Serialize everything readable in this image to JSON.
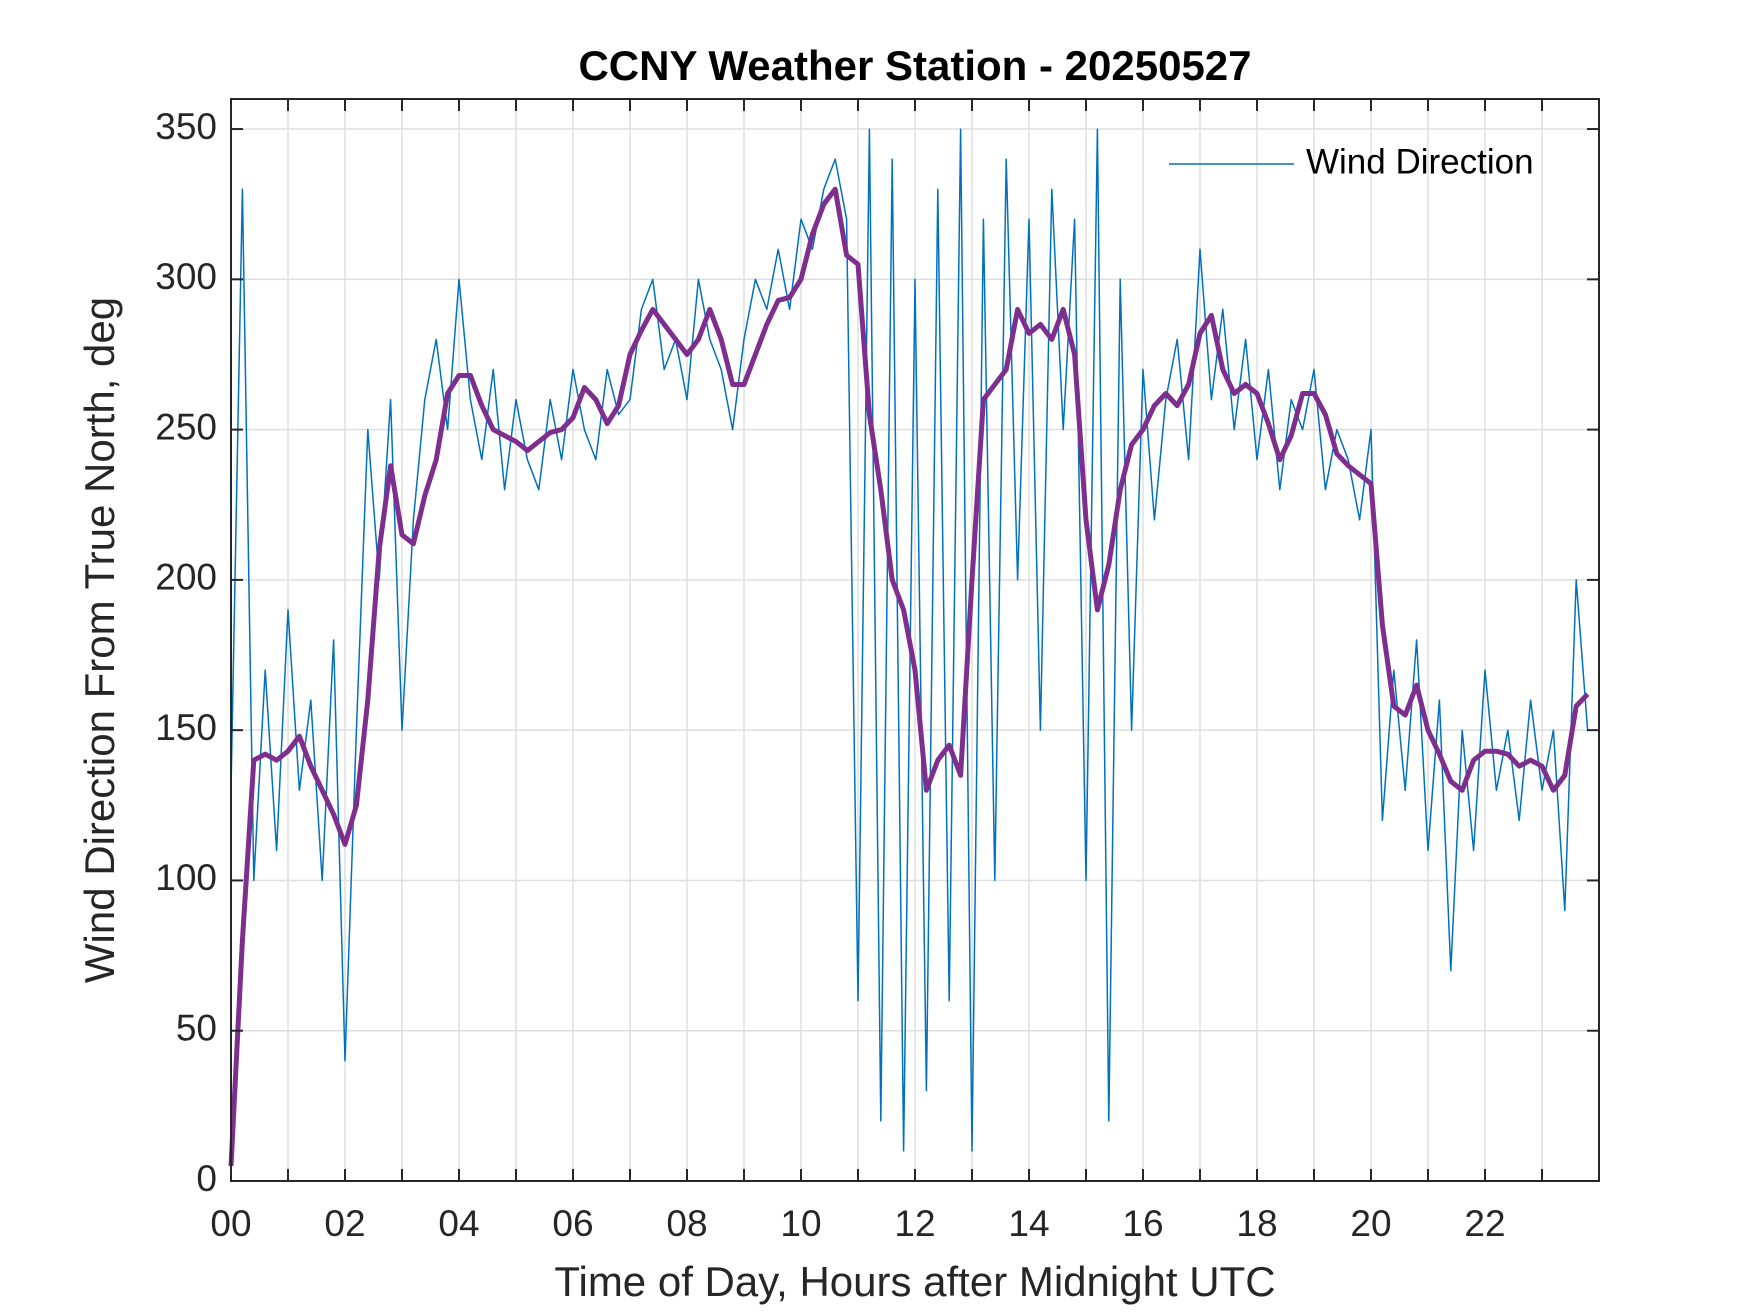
{
  "chart_data": {
    "type": "line",
    "title": "CCNY Weather Station - 20250527",
    "xlabel": "Time of Day, Hours after Midnight UTC",
    "ylabel": "Wind Direction From True North, deg",
    "xlim": [
      0,
      24
    ],
    "ylim": [
      0,
      360
    ],
    "xticks": [
      {
        "value": 0,
        "label": "00"
      },
      {
        "value": 2,
        "label": "02"
      },
      {
        "value": 4,
        "label": "04"
      },
      {
        "value": 6,
        "label": "06"
      },
      {
        "value": 8,
        "label": "08"
      },
      {
        "value": 10,
        "label": "10"
      },
      {
        "value": 12,
        "label": "12"
      },
      {
        "value": 14,
        "label": "14"
      },
      {
        "value": 16,
        "label": "16"
      },
      {
        "value": 18,
        "label": "18"
      },
      {
        "value": 20,
        "label": "20"
      },
      {
        "value": 22,
        "label": "22"
      }
    ],
    "xminorticks": [
      1,
      3,
      5,
      7,
      9,
      11,
      13,
      15,
      17,
      19,
      21,
      23
    ],
    "yticks": [
      0,
      50,
      100,
      150,
      200,
      250,
      300,
      350
    ],
    "grid": true,
    "legend": "northeast",
    "x": [
      0,
      0.2,
      0.4,
      0.6,
      0.8,
      1,
      1.2,
      1.4,
      1.6,
      1.8,
      2,
      2.2,
      2.4,
      2.6,
      2.8,
      3,
      3.2,
      3.4,
      3.6,
      3.8,
      4,
      4.2,
      4.4,
      4.6,
      4.8,
      5,
      5.2,
      5.4,
      5.6,
      5.8,
      6,
      6.2,
      6.4,
      6.6,
      6.8,
      7,
      7.2,
      7.4,
      7.6,
      7.8,
      8,
      8.2,
      8.4,
      8.6,
      8.8,
      9,
      9.2,
      9.4,
      9.6,
      9.8,
      10,
      10.2,
      10.4,
      10.6,
      10.8,
      11,
      11.2,
      11.4,
      11.6,
      11.8,
      12,
      12.2,
      12.4,
      12.6,
      12.8,
      13,
      13.2,
      13.4,
      13.6,
      13.8,
      14,
      14.2,
      14.4,
      14.6,
      14.8,
      15,
      15.2,
      15.4,
      15.6,
      15.8,
      16,
      16.2,
      16.4,
      16.6,
      16.8,
      17,
      17.2,
      17.4,
      17.6,
      17.8,
      18,
      18.2,
      18.4,
      18.6,
      18.8,
      19,
      19.2,
      19.4,
      19.6,
      19.8,
      20,
      20.2,
      20.4,
      20.6,
      20.8,
      21,
      21.2,
      21.4,
      21.6,
      21.8,
      22,
      22.2,
      22.4,
      22.6,
      22.8,
      23,
      23.2,
      23.4,
      23.6,
      23.8
    ],
    "series": [
      {
        "name": "Wind Direction",
        "color": "#0072bd",
        "width": 1.5,
        "values": [
          130,
          330,
          100,
          170,
          110,
          190,
          130,
          160,
          100,
          180,
          40,
          150,
          250,
          200,
          260,
          150,
          220,
          260,
          280,
          250,
          300,
          260,
          240,
          270,
          230,
          260,
          240,
          230,
          260,
          240,
          270,
          250,
          240,
          270,
          255,
          260,
          290,
          300,
          270,
          280,
          260,
          300,
          280,
          270,
          250,
          280,
          300,
          290,
          310,
          290,
          320,
          310,
          330,
          340,
          320,
          60,
          350,
          20,
          340,
          10,
          300,
          30,
          330,
          60,
          350,
          10,
          320,
          100,
          340,
          200,
          320,
          150,
          330,
          250,
          320,
          100,
          350,
          20,
          300,
          150,
          270,
          220,
          260,
          280,
          240,
          310,
          260,
          290,
          250,
          280,
          240,
          270,
          230,
          260,
          250,
          270,
          230,
          250,
          240,
          220,
          250,
          120,
          170,
          130,
          180,
          110,
          160,
          70,
          150,
          110,
          170,
          130,
          150,
          120,
          160,
          130,
          150,
          90,
          200,
          150
        ]
      },
      {
        "color": "#7e2f8e",
        "width": 5,
        "values": [
          5,
          80,
          140,
          142,
          140,
          143,
          148,
          138,
          130,
          122,
          112,
          125,
          160,
          210,
          238,
          215,
          212,
          228,
          240,
          262,
          268,
          268,
          258,
          250,
          248,
          246,
          243,
          246,
          249,
          250,
          254,
          264,
          260,
          252,
          258,
          275,
          283,
          290,
          285,
          280,
          275,
          280,
          290,
          280,
          265,
          265,
          275,
          285,
          293,
          294,
          300,
          315,
          325,
          330,
          308,
          305,
          255,
          230,
          200,
          190,
          170,
          130,
          140,
          145,
          135,
          200,
          260,
          265,
          270,
          290,
          282,
          285,
          280,
          290,
          275,
          220,
          190,
          205,
          230,
          245,
          250,
          258,
          262,
          258,
          265,
          282,
          288,
          270,
          262,
          265,
          262,
          252,
          240,
          248,
          262,
          262,
          255,
          242,
          238,
          235,
          232,
          185,
          158,
          155,
          165,
          150,
          142,
          133,
          130,
          140,
          143,
          143,
          142,
          138,
          140,
          138,
          130,
          135,
          158,
          162
        ]
      }
    ]
  }
}
